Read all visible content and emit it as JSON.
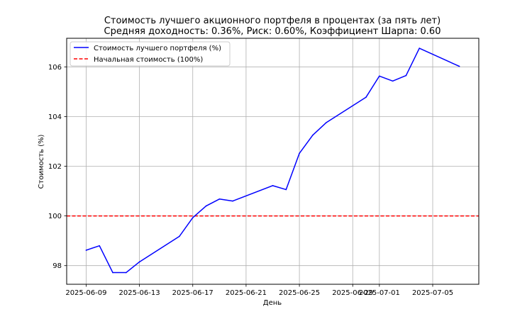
{
  "chart_data": {
    "type": "line",
    "title": "Стоимость лучшего акционного портфеля в процентах (за пять лет)",
    "subtitle": "Средняя доходность: 0.36%, Риск: 0.60%, Коэффициент Шарпа: 0.60",
    "xlabel": "День",
    "ylabel": "Стоимость (%)",
    "xlim": [
      "2025-06-07 13:00",
      "2025-07-08 11:00"
    ],
    "ylim": [
      97.25,
      107.15
    ],
    "x_ticks": [
      "2025-06-09",
      "2025-06-13",
      "2025-06-17",
      "2025-06-21",
      "2025-06-25",
      "2025-06-29",
      "2025-07-01",
      "2025-07-05"
    ],
    "y_ticks": [
      98,
      100,
      102,
      104,
      106
    ],
    "grid": true,
    "legend_position": "upper-left",
    "series": [
      {
        "name": "Стоимость лучшего портфеля (%)",
        "color": "#0000ff",
        "style": "solid",
        "x": [
          "2025-06-09",
          "2025-06-10",
          "2025-06-11",
          "2025-06-12",
          "2025-06-13",
          "2025-06-16",
          "2025-06-17",
          "2025-06-18",
          "2025-06-19",
          "2025-06-20",
          "2025-06-23",
          "2025-06-24",
          "2025-06-25",
          "2025-06-26",
          "2025-06-27",
          "2025-06-30",
          "2025-07-01",
          "2025-07-02",
          "2025-07-03",
          "2025-07-04",
          "2025-07-07"
        ],
        "y": [
          98.62,
          98.8,
          97.72,
          97.72,
          98.15,
          99.18,
          99.93,
          100.4,
          100.68,
          100.6,
          101.22,
          101.06,
          102.52,
          103.25,
          103.75,
          104.78,
          105.63,
          105.43,
          105.65,
          106.75,
          106.02
        ]
      },
      {
        "name": "Начальная стоимость (100%)",
        "color": "#ff0000",
        "style": "dashed",
        "y": 100
      }
    ]
  }
}
